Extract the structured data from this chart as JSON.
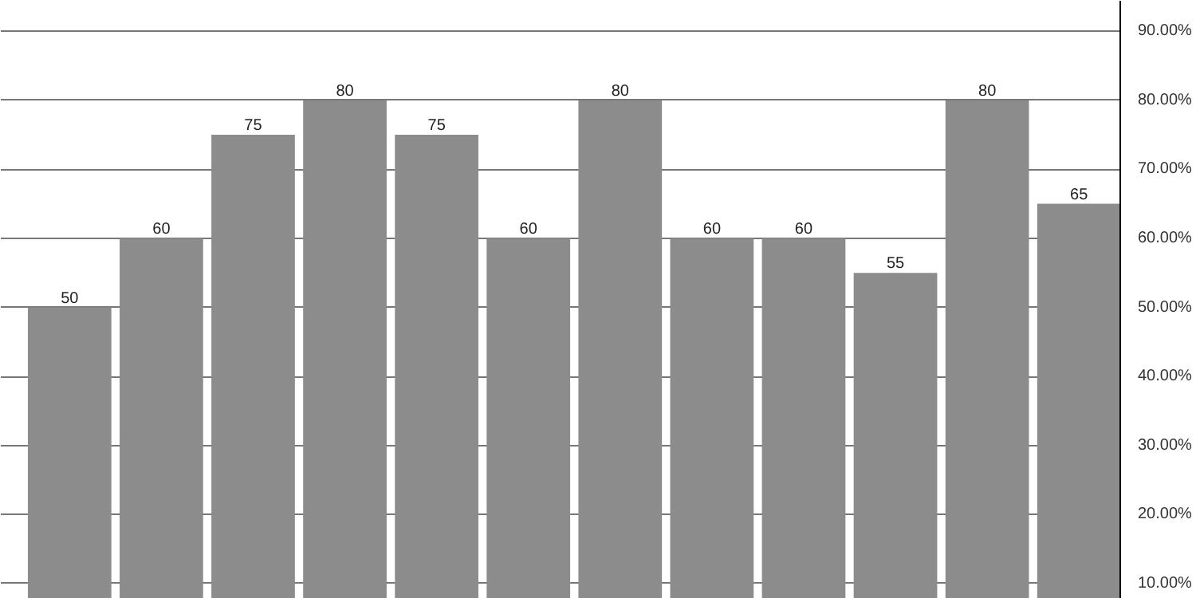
{
  "chart_data": {
    "type": "bar",
    "categories": [
      null,
      null,
      null,
      null,
      null,
      null,
      null,
      null,
      null,
      null,
      null,
      null
    ],
    "values": [
      50,
      60,
      75,
      80,
      75,
      60,
      80,
      60,
      60,
      55,
      80,
      65
    ],
    "color": "#8c8c8c",
    "ylim": [
      7.8,
      94.4
    ],
    "yticks": [
      {
        "value": 10,
        "label": "10.00%"
      },
      {
        "value": 20,
        "label": "20.00%"
      },
      {
        "value": 30,
        "label": "30.00%"
      },
      {
        "value": 40,
        "label": "40.00%"
      },
      {
        "value": 50,
        "label": "50.00%"
      },
      {
        "value": 60,
        "label": "60.00%"
      },
      {
        "value": 70,
        "label": "70.00%"
      },
      {
        "value": 80,
        "label": "80.00%"
      },
      {
        "value": 90,
        "label": "90.00%"
      }
    ],
    "grid": "y",
    "data_labels": true
  }
}
